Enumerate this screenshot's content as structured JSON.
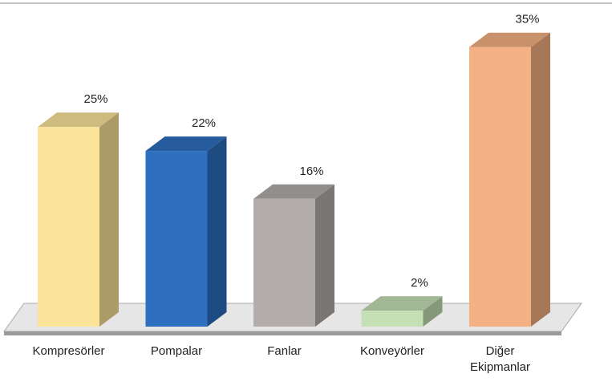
{
  "chart_data": {
    "type": "bar3d",
    "categories": [
      "Kompresörler",
      "Pompalar",
      "Fanlar",
      "Konveyörler",
      "Diğer Ekipmanlar"
    ],
    "values": [
      25,
      22,
      16,
      2,
      35
    ],
    "value_labels": [
      "25%",
      "22%",
      "16%",
      "2%",
      "35%"
    ],
    "colors": [
      "#fbe49a",
      "#2e6fc0",
      "#b2adaa",
      "#c5e0b4",
      "#f4b183"
    ]
  }
}
